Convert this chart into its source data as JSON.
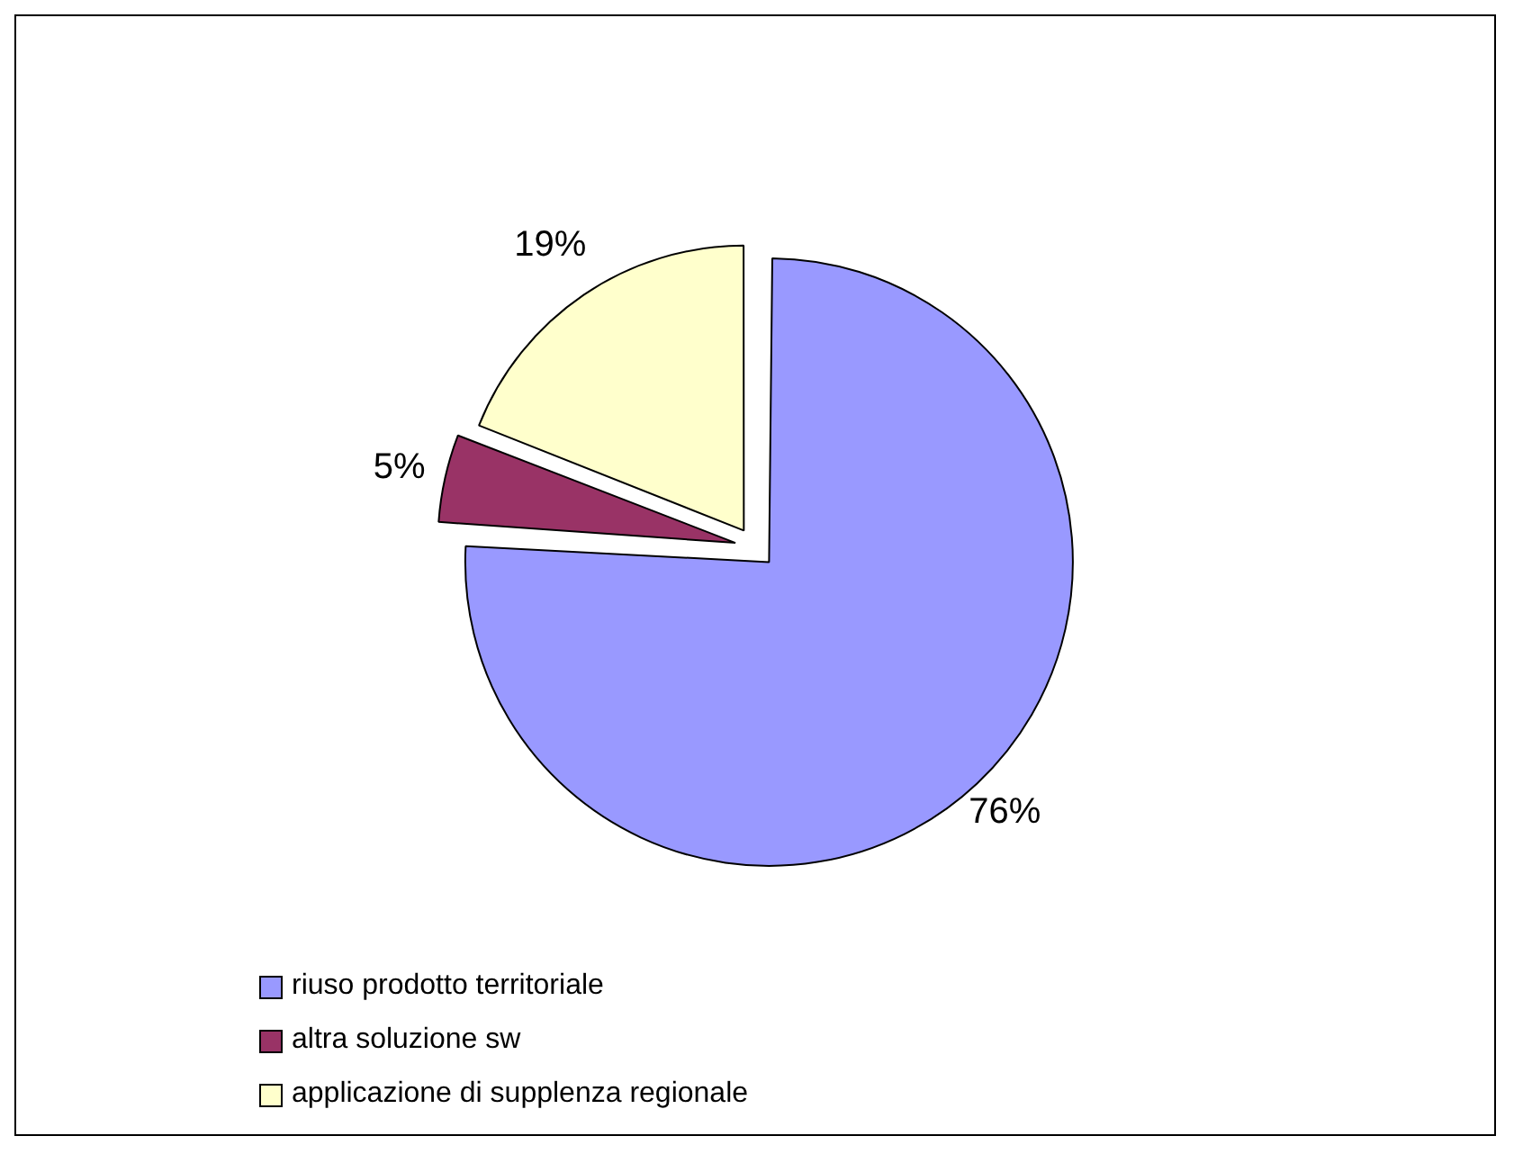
{
  "chart_data": {
    "type": "pie",
    "categories": [
      "riuso prodotto territoriale",
      "altra soluzione sw",
      "applicazione di supplenza regionale"
    ],
    "values": [
      76,
      5,
      19
    ],
    "colors": [
      "#9999ff",
      "#993366",
      "#ffffcc"
    ],
    "value_labels": [
      "76%",
      "5%",
      "19%"
    ],
    "legend": "bottom"
  }
}
